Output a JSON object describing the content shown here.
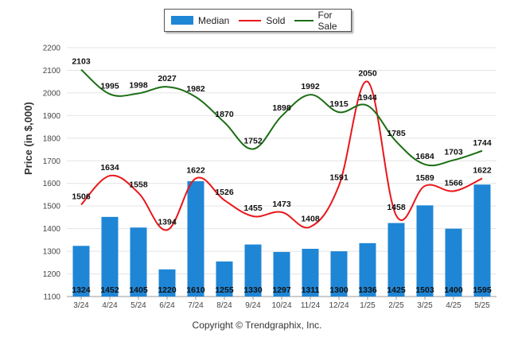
{
  "chart_data": {
    "type": "bar",
    "categories": [
      "3/24",
      "4/24",
      "5/24",
      "6/24",
      "7/24",
      "8/24",
      "9/24",
      "10/24",
      "11/24",
      "12/24",
      "1/25",
      "2/25",
      "3/25",
      "4/25",
      "5/25"
    ],
    "ylabel": "Price (in $,000)",
    "ylim": [
      1100,
      2200
    ],
    "yticks": [
      1100,
      1200,
      1300,
      1400,
      1500,
      1600,
      1700,
      1800,
      1900,
      2000,
      2100,
      2200
    ],
    "grid": true,
    "legend_position": "top-center",
    "series": [
      {
        "name": "Median",
        "type": "bar",
        "color": "#1f86d6",
        "values": [
          1324,
          1452,
          1405,
          1220,
          1610,
          1255,
          1330,
          1297,
          1311,
          1300,
          1336,
          1425,
          1503,
          1400,
          1595
        ]
      },
      {
        "name": "Sold",
        "type": "line",
        "color": "#e8171a",
        "values": [
          1506,
          1634,
          1558,
          1394,
          1622,
          1526,
          1455,
          1473,
          1408,
          1591,
          2050,
          1458,
          1589,
          1566,
          1622
        ]
      },
      {
        "name": "For Sale",
        "type": "line",
        "color": "#1b6e14",
        "values": [
          2103,
          1995,
          1998,
          2027,
          1982,
          1870,
          1752,
          1898,
          1992,
          1915,
          1944,
          1785,
          1684,
          1703,
          1744
        ]
      }
    ]
  },
  "footer": {
    "copyright": "Copyright © Trendgraphix, Inc."
  }
}
